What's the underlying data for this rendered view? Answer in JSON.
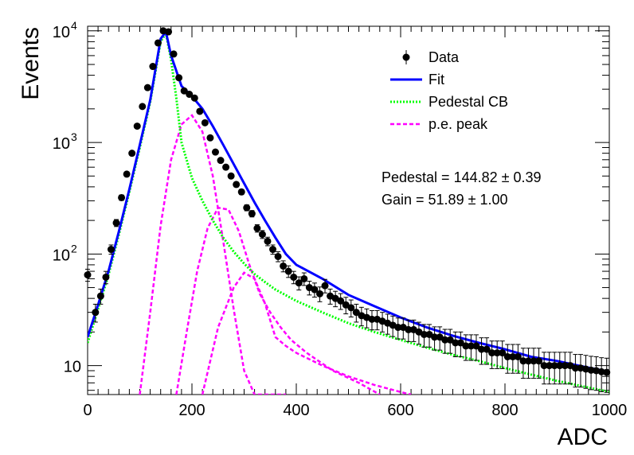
{
  "chart_data": {
    "type": "scatter",
    "xlabel": "ADC",
    "ylabel": "Events",
    "xlim": [
      0,
      1000
    ],
    "ylim": [
      5.5,
      11000
    ],
    "y_scale": "log",
    "grid": false,
    "legend_position": "top-right",
    "x_ticks": [
      "0",
      "200",
      "400",
      "600",
      "800",
      "1000"
    ],
    "y_ticks": [
      {
        "value": 10,
        "base": "10",
        "exp": ""
      },
      {
        "value": 100,
        "base": "10",
        "exp": "2"
      },
      {
        "value": 1000,
        "base": "10",
        "exp": "3"
      },
      {
        "value": 10000,
        "base": "10",
        "exp": "4"
      }
    ],
    "legend": [
      {
        "label": "Data",
        "style": "marker"
      },
      {
        "label": "Fit",
        "style": "solid",
        "color": "#0000ff"
      },
      {
        "label": "Pedestal CB",
        "style": "dotted",
        "color": "#00ff00"
      },
      {
        "label": "p.e. peak",
        "style": "dashed",
        "color": "#ff00ff"
      }
    ],
    "annotations": [
      "Pedestal = 144.82 ± 0.39",
      "Gain = 51.89 ± 1.00"
    ],
    "data_points": {
      "x": [
        0,
        15,
        25,
        35,
        45,
        55,
        65,
        75,
        85,
        95,
        105,
        115,
        125,
        135,
        145,
        155,
        165,
        175,
        185,
        195,
        205,
        215,
        225,
        235,
        245,
        255,
        265,
        275,
        285,
        295,
        305,
        315,
        325,
        335,
        345,
        355,
        365,
        375,
        385,
        395,
        405,
        415,
        425,
        435,
        445,
        455,
        465,
        475,
        485,
        495,
        505,
        515,
        525,
        535,
        545,
        555,
        565,
        575,
        585,
        595,
        605,
        615,
        625,
        635,
        645,
        655,
        665,
        675,
        685,
        695,
        705,
        715,
        725,
        735,
        745,
        755,
        765,
        775,
        785,
        795,
        805,
        815,
        825,
        835,
        845,
        855,
        865,
        875,
        885,
        895,
        905,
        915,
        925,
        935,
        945,
        955,
        965,
        975,
        985,
        995
      ],
      "y": [
        65,
        30,
        42,
        62,
        110,
        190,
        320,
        520,
        800,
        1400,
        2100,
        3100,
        4800,
        7800,
        10000,
        9800,
        6200,
        3800,
        2900,
        2700,
        2500,
        1900,
        1500,
        1100,
        820,
        690,
        600,
        500,
        420,
        360,
        260,
        230,
        170,
        150,
        130,
        110,
        95,
        78,
        70,
        62,
        55,
        60,
        50,
        48,
        44,
        52,
        42,
        40,
        38,
        35,
        33,
        30,
        28,
        27,
        26,
        26,
        25,
        24,
        23,
        22,
        22,
        21,
        21,
        20,
        19,
        19,
        18,
        18,
        17,
        17,
        16,
        16,
        15,
        15,
        15,
        14,
        14,
        13,
        13,
        13,
        12,
        12,
        12,
        11,
        11,
        11,
        11,
        10,
        10,
        10,
        10,
        10,
        10,
        9.5,
        9.5,
        9.3,
        9.1,
        9.0,
        8.8,
        8.7
      ]
    },
    "fit_curve": {
      "x": [
        0,
        20,
        40,
        60,
        80,
        100,
        120,
        140,
        150,
        160,
        180,
        200,
        220,
        240,
        260,
        280,
        300,
        320,
        340,
        360,
        380,
        400,
        450,
        500,
        550,
        600,
        650,
        700,
        750,
        800,
        850,
        900,
        950,
        1000
      ],
      "y": [
        18,
        35,
        70,
        160,
        380,
        950,
        2400,
        8500,
        9800,
        6000,
        3200,
        2600,
        2000,
        1400,
        950,
        640,
        430,
        290,
        200,
        140,
        100,
        80,
        60,
        43,
        34,
        27,
        22,
        18.5,
        16,
        14,
        12,
        11,
        9.8,
        8.8
      ]
    },
    "pedestal_cb": {
      "x": [
        0,
        20,
        40,
        60,
        80,
        100,
        120,
        140,
        150,
        160,
        170,
        180,
        200,
        220,
        240,
        260,
        280,
        300,
        320,
        340,
        360,
        400,
        450,
        500,
        550,
        600,
        650,
        700,
        750,
        800,
        850,
        900,
        950,
        1000
      ],
      "y": [
        16,
        32,
        65,
        150,
        360,
        900,
        2300,
        8000,
        9500,
        5500,
        2500,
        1000,
        480,
        300,
        200,
        140,
        105,
        82,
        66,
        56,
        48,
        38,
        30,
        24,
        20,
        17,
        14.5,
        12.5,
        11,
        9.5,
        8.3,
        7.3,
        6.5,
        5.8
      ]
    },
    "pe_peaks": [
      {
        "x": [
          100,
          120,
          140,
          160,
          180,
          200,
          220,
          240,
          260,
          280,
          300,
          320,
          340,
          360,
          380
        ],
        "y": [
          5.5,
          30,
          180,
          700,
          1450,
          1750,
          1250,
          500,
          130,
          32,
          9,
          5.5,
          5.5,
          5.5,
          5.5
        ]
      },
      {
        "x": [
          170,
          190,
          210,
          230,
          250,
          270,
          290,
          310,
          330,
          350,
          370,
          390,
          420,
          470,
          520,
          560
        ],
        "y": [
          5.5,
          20,
          70,
          170,
          260,
          250,
          160,
          80,
          44,
          30,
          22,
          17,
          13,
          9,
          7,
          5.5
        ]
      },
      {
        "x": [
          220,
          250,
          280,
          300,
          320,
          340,
          360,
          380,
          400,
          450,
          500,
          550,
          600,
          620
        ],
        "y": [
          5.5,
          22,
          50,
          68,
          60,
          36,
          18,
          15,
          13,
          10,
          8,
          6.7,
          5.8,
          5.5
        ]
      }
    ]
  }
}
